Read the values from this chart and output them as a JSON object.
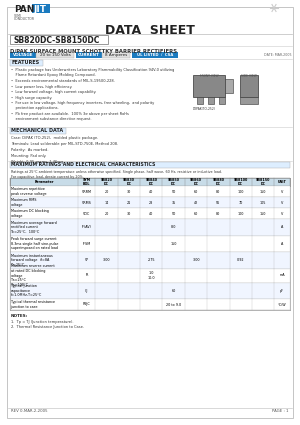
{
  "title": "DATA  SHEET",
  "part_number": "SB820DC-SB8150DC",
  "subtitle": "D/PAK SURFACE MOUNT SCHOTTKY BARRIER RECTIFIERS",
  "voltage_label": "VOLTAGE",
  "voltage_value": "20 to 150 Volts",
  "current_label": "CURRENT",
  "current_value": "8 Amperes",
  "cert_label": "UL LISTED  /  CSA",
  "date_code": "DATE: MAR-2005",
  "features_title": "FEATURES",
  "features": [
    "Plastic package has Underwriters Laboratory Flammability Classification 94V-0 utilizing\n  Flame Retardant Epoxy Molding Compound.",
    "Exceeds environmental standards of MIL-S-19500-228.",
    "Low power loss, high efficiency.",
    "Low forward voltage, high current capability.",
    "High surge capacity.",
    "For use in low voltage, high frequency inverters, free wheeling,  and polarity protection applications.",
    "Pb free product are available.  100% 3σ above per sheet RoHs environment substance directive request."
  ],
  "mech_title": "MECHANICAL DATA",
  "mech_data": [
    "Case: D/PAK (TO-252),  molded plastic package.",
    "Terminals: Lead solderable per MIL-STD-750E, Method 208.",
    "Polarity:  As marked.",
    "Mounting: Pad only.",
    "Weight: 0.95 grams, 1.46mg."
  ],
  "table_title": "MAXIMUM RATINGS AND ELECTRICAL CHARACTERISTICS",
  "table_note": "Ratings at 25°C ambient temperature unless otherwise specified. Single phase, half wave, 60 Hz, resistive or inductive load.",
  "table_note2": "For capacitive load, derate current by 20%.",
  "col_headers": [
    "Pa ra me te r",
    "SY MB OL",
    "SB820DC",
    "SB830DC",
    "SB840DC",
    "SB850DC",
    "SB860DC",
    "SB880DC",
    "SB8100DC",
    "SB8150DC",
    "UN IT"
  ],
  "rows_param": [
    "M aximum repetitive\npeak reverse voltage",
    "M aximum RMS voltage",
    "M aximum DC blocking\nvoltage",
    "M aximum average forward\nrectified current\nat T = 25°C,  100°C",
    "Peak forward surge current\n8.3ms single half\nsine-pulse superimposed\non rated load",
    "M aximum instantaneous\nforward voltage\n  if = 8A, T = 25°C",
    "M aximum reverse current\nat rated DC blocking\nvoltage\nTa = 25°C\nTa = 100°C",
    "Typical junction\ncapacitance\n  f = 1.0 MHz,  T = 25°C",
    "Typical thermal resistance\njunction to case"
  ],
  "rows_sym": [
    "VRRM",
    "VRMS",
    "VDC",
    "IF(AV)",
    "IFSM",
    "VF",
    "IR",
    "CJ",
    "RθJC"
  ],
  "rows_unit": [
    "V",
    "V",
    "V",
    "A",
    "A",
    "",
    "mA",
    "pF",
    "°C/W"
  ],
  "row_vals": [
    [
      "20",
      "30",
      "40",
      "50",
      "60",
      "80",
      "100",
      "150"
    ],
    [
      "14",
      "21",
      "28",
      "35",
      "42",
      "56",
      "70",
      "105"
    ],
    [
      "20",
      "30",
      "40",
      "50",
      "60",
      "80",
      "100",
      "150"
    ],
    [
      "",
      "",
      "",
      "8.0",
      "",
      "",
      "",
      ""
    ],
    [
      "",
      "",
      "",
      "150",
      "",
      "",
      "",
      ""
    ],
    [
      "3.00",
      "",
      "2.75",
      "",
      "3.00",
      "",
      "0.92",
      ""
    ],
    [
      "",
      "",
      "1.0",
      "",
      "",
      "",
      "",
      ""
    ],
    [
      "",
      "",
      "",
      "60",
      "",
      "",
      "",
      ""
    ],
    [
      "",
      "",
      "",
      "20 to 9.0",
      "",
      "",
      "",
      ""
    ]
  ],
  "ir_extra": [
    "",
    "",
    "10.0",
    "",
    "",
    "",
    "",
    ""
  ],
  "notes_title": "NOTES:",
  "notes": [
    "1.  Tp = TJ (Junction temperature).",
    "2.  Thermal Resistance Junction to Case."
  ],
  "footer_left": "REV 0-MAR-2-2005",
  "footer_right": "PAGE : 1",
  "bg_white": "#ffffff",
  "bg_outer": "#f5f5f5",
  "blue_badge": "#3399cc",
  "blue_light": "#cce6ff",
  "section_bg": "#ddeeff",
  "table_header_bg": "#c8dce8",
  "row_alt1": "#ffffff",
  "row_alt2": "#f0f5ff"
}
